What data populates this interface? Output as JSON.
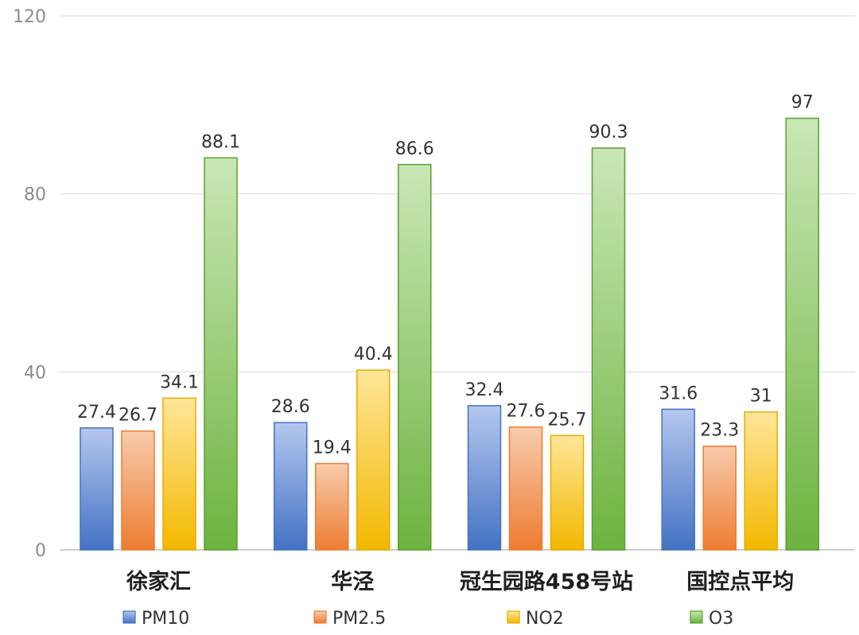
{
  "chart_data": {
    "type": "bar",
    "categories": [
      "徐家汇",
      "华泾",
      "冠生园路458号站",
      "国控点平均"
    ],
    "series": [
      {
        "name": "PM10",
        "values": [
          27.4,
          28.6,
          32.4,
          31.6
        ],
        "color_top": "#b4c7ee",
        "color_bottom": "#4472c4",
        "stroke": "#4472c4"
      },
      {
        "name": "PM2.5",
        "values": [
          26.7,
          19.4,
          27.6,
          23.3
        ],
        "color_top": "#f8cbad",
        "color_bottom": "#ed7d31",
        "stroke": "#ed7d31"
      },
      {
        "name": "NO2",
        "values": [
          34.1,
          40.4,
          25.7,
          31
        ],
        "color_top": "#ffe699",
        "color_bottom": "#f2b800",
        "stroke": "#e6ac00"
      },
      {
        "name": "O3",
        "values": [
          88.1,
          86.6,
          90.3,
          97
        ],
        "color_top": "#c9e7b6",
        "color_bottom": "#6db33f",
        "stroke": "#5aa02c"
      }
    ],
    "ylim": [
      0,
      120
    ],
    "yticks": [
      0,
      40,
      80,
      120
    ],
    "grid": true,
    "legend": "bottom",
    "title": "",
    "xlabel": "",
    "ylabel": ""
  }
}
